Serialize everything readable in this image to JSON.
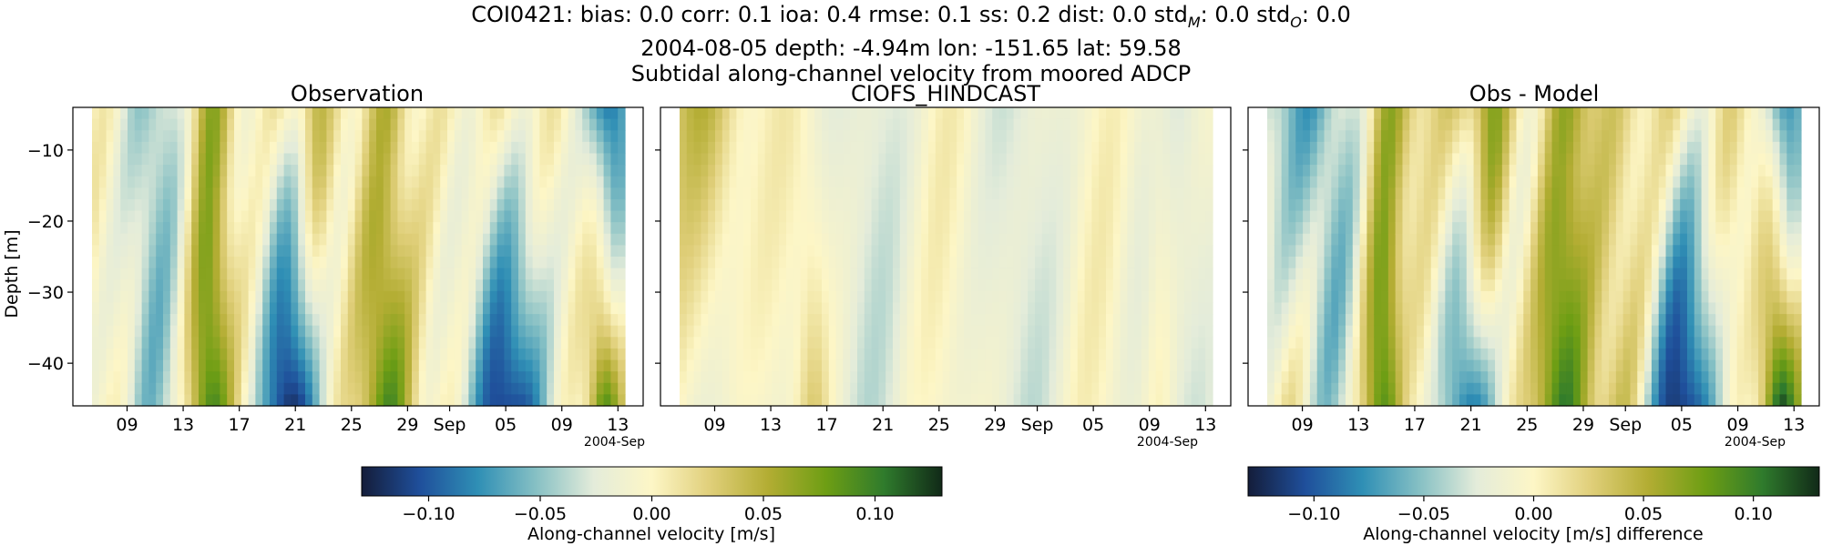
{
  "header": {
    "station": "COI0421",
    "stats_line_pre": "bias: 0.0  corr: 0.1  ioa: 0.4  rmse: 0.1  ss: 0.2  dist: 0.0  std",
    "std_m_sub": "M",
    "std_m_value": ": 0.0  std",
    "std_o_sub": "O",
    "std_o_value": ": 0.0",
    "location_line": "2004-08-05 depth: -4.94m lon: -151.65 lat: 59.58",
    "description_line": "Subtidal along-channel velocity from moored ADCP"
  },
  "colors": {
    "cmap": [
      "#141d3a",
      "#1f4f9b",
      "#2f8fb5",
      "#86c0c4",
      "#e4ecda",
      "#fdf6c6",
      "#e0cf7a",
      "#b3ad33",
      "#6e9e14",
      "#2f7b2c",
      "#112a18"
    ]
  },
  "chart_data": [
    {
      "type": "heatmap",
      "panel": "observation",
      "title": "Observation",
      "ylabel": "Depth [m]",
      "ylim": [
        -46,
        -4
      ],
      "yticks": [
        -10,
        -20,
        -30,
        -40
      ],
      "ytick_labels": [
        "−10",
        "−20",
        "−30",
        "−40"
      ],
      "xticks": [
        "2004-08-09",
        "2004-08-13",
        "2004-08-17",
        "2004-08-21",
        "2004-08-25",
        "2004-08-29",
        "2004-09-01",
        "2004-09-05",
        "2004-09-09",
        "2004-09-13"
      ],
      "xtick_labels": [
        "09",
        "13",
        "17",
        "21",
        "25",
        "29",
        "Sep",
        "05",
        "09",
        "13"
      ],
      "x_offset_label": "2004-Sep",
      "xlim": [
        "2004-08-07",
        "2004-09-14"
      ],
      "vmin": -0.13,
      "vmax": 0.13,
      "colorbar_label": "Along-channel velocity [m/s]"
    },
    {
      "type": "heatmap",
      "panel": "model",
      "title": "CIOFS_HINDCAST",
      "ylim": [
        -46,
        -4
      ],
      "yticks": [
        -10,
        -20,
        -30,
        -40
      ],
      "xticks": [
        "2004-08-09",
        "2004-08-13",
        "2004-08-17",
        "2004-08-21",
        "2004-08-25",
        "2004-08-29",
        "2004-09-01",
        "2004-09-05",
        "2004-09-09",
        "2004-09-13"
      ],
      "xtick_labels": [
        "09",
        "13",
        "17",
        "21",
        "25",
        "29",
        "Sep",
        "05",
        "09",
        "13"
      ],
      "x_offset_label": "2004-Sep",
      "vmin": -0.13,
      "vmax": 0.13
    },
    {
      "type": "heatmap",
      "panel": "difference",
      "title": "Obs - Model",
      "ylim": [
        -46,
        -4
      ],
      "yticks": [
        -10,
        -20,
        -30,
        -40
      ],
      "xticks": [
        "2004-08-09",
        "2004-08-13",
        "2004-08-17",
        "2004-08-21",
        "2004-08-25",
        "2004-08-29",
        "2004-09-01",
        "2004-09-05",
        "2004-09-09",
        "2004-09-13"
      ],
      "xtick_labels": [
        "09",
        "13",
        "17",
        "21",
        "25",
        "29",
        "Sep",
        "05",
        "09",
        "13"
      ],
      "x_offset_label": "2004-Sep",
      "vmin": -0.13,
      "vmax": 0.13,
      "colorbar_label": "Along-channel velocity [m/s] difference"
    }
  ],
  "colorbar": {
    "ticks": [
      -0.1,
      -0.05,
      0.0,
      0.05,
      0.1
    ],
    "tick_labels": [
      "−0.10",
      "−0.05",
      "0.00",
      "0.05",
      "0.10"
    ]
  }
}
